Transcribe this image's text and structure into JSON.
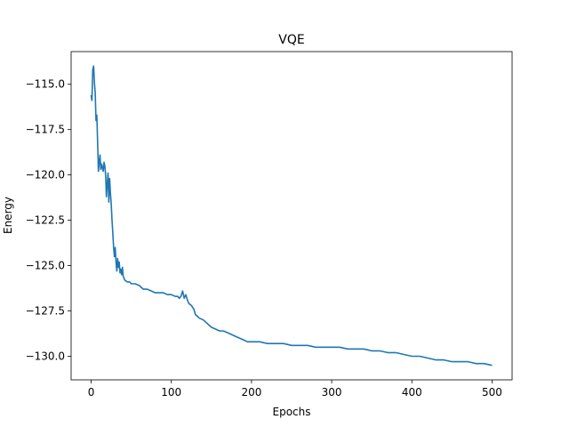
{
  "chart_data": {
    "type": "line",
    "title": "VQE",
    "xlabel": "Epochs",
    "ylabel": "Energy",
    "xlim": [
      -25,
      525
    ],
    "ylim": [
      -131.3,
      -113.2
    ],
    "xticks": [
      0,
      100,
      200,
      300,
      400,
      500
    ],
    "xtick_labels": [
      "0",
      "100",
      "200",
      "300",
      "400",
      "500"
    ],
    "yticks": [
      -130.0,
      -127.5,
      -125.0,
      -122.5,
      -120.0,
      -117.5,
      -115.0
    ],
    "ytick_labels": [
      "−130.0",
      "−127.5",
      "−125.0",
      "−122.5",
      "−120.0",
      "−117.5",
      "−115.0"
    ],
    "grid": false,
    "legend": "none",
    "series": [
      {
        "color": "#1f77b4",
        "x": [
          0,
          1,
          2,
          3,
          4,
          5,
          6,
          7,
          8,
          9,
          10,
          11,
          12,
          13,
          14,
          15,
          16,
          17,
          18,
          19,
          20,
          21,
          22,
          23,
          24,
          25,
          26,
          27,
          28,
          29,
          30,
          31,
          32,
          33,
          34,
          35,
          36,
          37,
          38,
          39,
          40,
          42,
          45,
          48,
          50,
          55,
          60,
          65,
          70,
          75,
          80,
          85,
          90,
          95,
          100,
          105,
          108,
          110,
          112,
          114,
          116,
          118,
          120,
          122,
          125,
          128,
          130,
          135,
          140,
          145,
          150,
          155,
          160,
          165,
          170,
          175,
          180,
          185,
          190,
          195,
          200,
          210,
          220,
          230,
          240,
          250,
          260,
          270,
          280,
          290,
          300,
          310,
          320,
          330,
          340,
          350,
          360,
          370,
          380,
          390,
          400,
          410,
          420,
          430,
          440,
          450,
          460,
          470,
          480,
          490,
          500
        ],
        "y": [
          -115.6,
          -115.9,
          -114.2,
          -114.0,
          -114.9,
          -115.5,
          -117.0,
          -116.7,
          -118.2,
          -119.8,
          -119.3,
          -118.9,
          -119.7,
          -119.4,
          -119.6,
          -119.8,
          -119.3,
          -119.5,
          -120.0,
          -121.2,
          -120.5,
          -119.9,
          -121.5,
          -120.2,
          -121.0,
          -121.6,
          -122.5,
          -123.2,
          -124.0,
          -124.5,
          -124.0,
          -124.8,
          -125.3,
          -124.6,
          -125.1,
          -124.8,
          -125.4,
          -125.2,
          -125.5,
          -125.1,
          -125.6,
          -125.8,
          -125.9,
          -125.9,
          -126.0,
          -126.0,
          -126.1,
          -126.3,
          -126.3,
          -126.4,
          -126.5,
          -126.5,
          -126.5,
          -126.6,
          -126.6,
          -126.7,
          -126.7,
          -126.8,
          -126.7,
          -126.4,
          -126.8,
          -126.6,
          -126.9,
          -127.1,
          -127.2,
          -127.4,
          -127.7,
          -127.9,
          -128.0,
          -128.2,
          -128.4,
          -128.5,
          -128.6,
          -128.6,
          -128.7,
          -128.8,
          -128.9,
          -129.0,
          -129.1,
          -129.2,
          -129.2,
          -129.2,
          -129.3,
          -129.3,
          -129.3,
          -129.4,
          -129.4,
          -129.4,
          -129.5,
          -129.5,
          -129.5,
          -129.5,
          -129.6,
          -129.6,
          -129.6,
          -129.7,
          -129.7,
          -129.8,
          -129.8,
          -129.9,
          -130.0,
          -130.0,
          -130.1,
          -130.2,
          -130.2,
          -130.3,
          -130.3,
          -130.3,
          -130.4,
          -130.4,
          -130.5
        ]
      }
    ]
  }
}
